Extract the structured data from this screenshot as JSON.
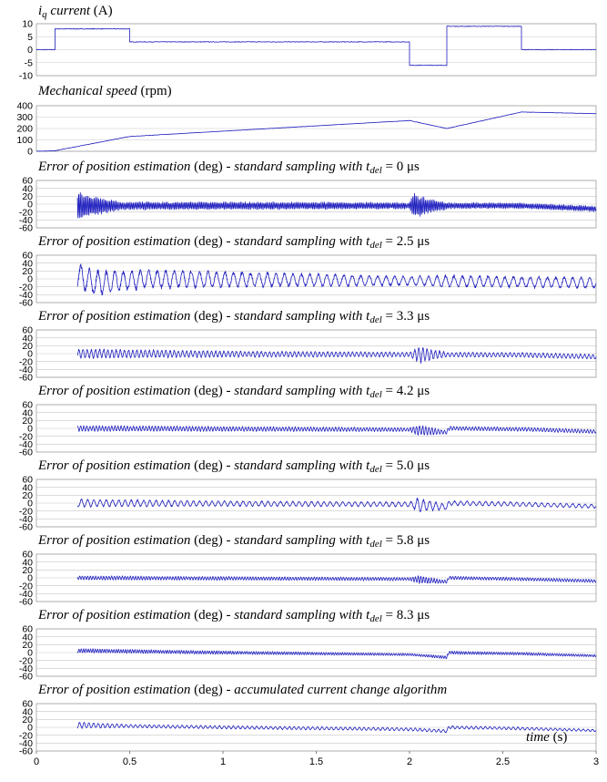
{
  "chart_data": [
    {
      "type": "line",
      "title_parts": [
        [
          "i",
          "i"
        ],
        [
          "q",
          "sub-i"
        ],
        [
          " current",
          "i"
        ],
        [
          " (A)",
          "n"
        ]
      ],
      "ylim": [
        -10,
        10
      ],
      "yticks": [
        "10",
        "5",
        "0",
        "-5",
        "-10"
      ],
      "yticks_v": [
        10,
        5,
        0,
        -5,
        -10
      ],
      "xlim": [
        0,
        3
      ],
      "series": [
        {
          "kind": "segments",
          "points": [
            [
              0,
              0
            ],
            [
              0.1,
              0
            ],
            [
              0.1,
              8
            ],
            [
              0.5,
              8
            ],
            [
              0.5,
              3
            ],
            [
              2.0,
              3
            ],
            [
              2.0,
              -6
            ],
            [
              2.2,
              -6
            ],
            [
              2.2,
              9
            ],
            [
              2.6,
              9
            ],
            [
              2.6,
              0
            ],
            [
              3.0,
              0
            ]
          ],
          "noise": 0.25
        }
      ]
    },
    {
      "type": "line",
      "title_parts": [
        [
          "Mechanical speed",
          "i"
        ],
        [
          " (rpm)",
          "n"
        ]
      ],
      "ylim": [
        0,
        400
      ],
      "yticks": [
        "400",
        "300",
        "200",
        "100",
        "0"
      ],
      "yticks_v": [
        400,
        300,
        200,
        100,
        0
      ],
      "xlim": [
        0,
        3
      ],
      "series": [
        {
          "kind": "segments",
          "points": [
            [
              0,
              0
            ],
            [
              0.1,
              5
            ],
            [
              0.5,
              130
            ],
            [
              2.0,
              270
            ],
            [
              2.2,
              200
            ],
            [
              2.6,
              345
            ],
            [
              3.0,
              330
            ]
          ],
          "noise": 3
        }
      ]
    },
    {
      "type": "line",
      "title_parts": [
        [
          "Error of position estimation",
          "i"
        ],
        [
          " (deg) - ",
          "n"
        ],
        [
          "standard sampling with ",
          "i"
        ],
        [
          "t",
          "i"
        ],
        [
          "del",
          "sub-i"
        ],
        [
          " = 0 ",
          "n"
        ],
        [
          "μs",
          "n"
        ]
      ],
      "ylim": [
        -60,
        60
      ],
      "yticks": [
        "60",
        "40",
        "20",
        "0",
        "-20",
        "-40",
        "-60"
      ],
      "yticks_v": [
        60,
        40,
        20,
        0,
        -20,
        -40,
        -60
      ],
      "xlim": [
        0,
        3
      ],
      "series": [
        {
          "kind": "osc",
          "start": 0.22,
          "offset": -2,
          "amp": [
            [
              0.22,
              35
            ],
            [
              0.45,
              10
            ],
            [
              2.0,
              8
            ],
            [
              2.02,
              30
            ],
            [
              2.2,
              8
            ],
            [
              2.6,
              7
            ],
            [
              3.0,
              7
            ]
          ],
          "freq": 120,
          "drift": [
            [
              2.6,
              -2
            ],
            [
              3.0,
              -10
            ]
          ]
        }
      ]
    },
    {
      "type": "line",
      "title_parts": [
        [
          "Error of position estimation",
          "i"
        ],
        [
          " (deg) - ",
          "n"
        ],
        [
          "standard sampling with ",
          "i"
        ],
        [
          "t",
          "i"
        ],
        [
          "del",
          "sub-i"
        ],
        [
          " = 2.5 ",
          "n"
        ],
        [
          "μs",
          "n"
        ]
      ],
      "ylim": [
        -60,
        60
      ],
      "yticks": [
        "60",
        "40",
        "20",
        "0",
        "-20",
        "-40",
        "-60"
      ],
      "yticks_v": [
        60,
        40,
        20,
        0,
        -20,
        -40,
        -60
      ],
      "xlim": [
        0,
        3
      ],
      "series": [
        {
          "kind": "osc",
          "start": 0.22,
          "offset": 0,
          "amp": [
            [
              0.22,
              35
            ],
            [
              0.5,
              25
            ],
            [
              2.0,
              12
            ],
            [
              2.2,
              15
            ],
            [
              2.6,
              14
            ],
            [
              3.0,
              14
            ]
          ],
          "freq": 22,
          "drift": [
            [
              0.22,
              10
            ],
            [
              0.3,
              -10
            ],
            [
              0.6,
              0
            ],
            [
              2.0,
              -5
            ],
            [
              2.6,
              -8
            ],
            [
              3.0,
              -10
            ]
          ]
        }
      ]
    },
    {
      "type": "line",
      "title_parts": [
        [
          "Error of position estimation",
          "i"
        ],
        [
          " (deg) - ",
          "n"
        ],
        [
          "standard sampling with ",
          "i"
        ],
        [
          "t",
          "i"
        ],
        [
          "del",
          "sub-i"
        ],
        [
          " = 3.3 ",
          "n"
        ],
        [
          "μs",
          "n"
        ]
      ],
      "ylim": [
        -60,
        60
      ],
      "yticks": [
        "60",
        "40",
        "20",
        "0",
        "-20",
        "-40",
        "-60"
      ],
      "yticks_v": [
        60,
        40,
        20,
        0,
        -20,
        -40,
        -60
      ],
      "xlim": [
        0,
        3
      ],
      "series": [
        {
          "kind": "osc",
          "start": 0.22,
          "offset": 0,
          "amp": [
            [
              0.22,
              12
            ],
            [
              1.0,
              8
            ],
            [
              2.0,
              6
            ],
            [
              2.05,
              20
            ],
            [
              2.2,
              6
            ],
            [
              2.6,
              6
            ],
            [
              3.0,
              6
            ]
          ],
          "freq": 45,
          "drift": [
            [
              0.22,
              0
            ],
            [
              2.6,
              -3
            ],
            [
              3.0,
              -8
            ]
          ]
        }
      ]
    },
    {
      "type": "line",
      "title_parts": [
        [
          "Error of position estimation",
          "i"
        ],
        [
          " (deg) - ",
          "n"
        ],
        [
          "standard sampling with ",
          "i"
        ],
        [
          "t",
          "i"
        ],
        [
          "del",
          "sub-i"
        ],
        [
          " = 4.2 ",
          "n"
        ],
        [
          "μs",
          "n"
        ]
      ],
      "ylim": [
        -60,
        60
      ],
      "yticks": [
        "60",
        "40",
        "20",
        "0",
        "-20",
        "-40",
        "-60"
      ],
      "yticks_v": [
        60,
        40,
        20,
        0,
        -20,
        -40,
        -60
      ],
      "xlim": [
        0,
        3
      ],
      "series": [
        {
          "kind": "osc",
          "start": 0.22,
          "offset": 0,
          "amp": [
            [
              0.22,
              7
            ],
            [
              2.0,
              5
            ],
            [
              2.05,
              14
            ],
            [
              2.2,
              5
            ],
            [
              3.0,
              5
            ]
          ],
          "freq": 60,
          "drift": [
            [
              0.22,
              0
            ],
            [
              2.0,
              -3
            ],
            [
              2.2,
              -10
            ],
            [
              2.21,
              0
            ],
            [
              2.6,
              -2
            ],
            [
              3.0,
              -8
            ]
          ]
        }
      ]
    },
    {
      "type": "line",
      "title_parts": [
        [
          "Error of position estimation",
          "i"
        ],
        [
          " (deg) - ",
          "n"
        ],
        [
          "standard sampling with ",
          "i"
        ],
        [
          "t",
          "i"
        ],
        [
          "del",
          "sub-i"
        ],
        [
          " = 5.0 ",
          "n"
        ],
        [
          "μs",
          "n"
        ]
      ],
      "ylim": [
        -60,
        60
      ],
      "yticks": [
        "60",
        "40",
        "20",
        "0",
        "-20",
        "-40",
        "-60"
      ],
      "yticks_v": [
        60,
        40,
        20,
        0,
        -20,
        -40,
        -60
      ],
      "xlim": [
        0,
        3
      ],
      "series": [
        {
          "kind": "osc",
          "start": 0.22,
          "offset": 0,
          "amp": [
            [
              0.22,
              10
            ],
            [
              1.0,
              7
            ],
            [
              2.0,
              6
            ],
            [
              2.05,
              18
            ],
            [
              2.2,
              6
            ],
            [
              3.0,
              5
            ]
          ],
          "freq": 30,
          "drift": [
            [
              0.22,
              0
            ],
            [
              2.0,
              -3
            ],
            [
              2.2,
              -10
            ],
            [
              2.21,
              0
            ],
            [
              2.6,
              -3
            ],
            [
              3.0,
              -8
            ]
          ]
        }
      ]
    },
    {
      "type": "line",
      "title_parts": [
        [
          "Error of position estimation",
          "i"
        ],
        [
          " (deg) - ",
          "n"
        ],
        [
          "standard sampling with ",
          "i"
        ],
        [
          "t",
          "i"
        ],
        [
          "del",
          "sub-i"
        ],
        [
          " = 5.8 ",
          "n"
        ],
        [
          "μs",
          "n"
        ]
      ],
      "ylim": [
        -60,
        60
      ],
      "yticks": [
        "60",
        "40",
        "20",
        "0",
        "-20",
        "-40",
        "-60"
      ],
      "yticks_v": [
        60,
        40,
        20,
        0,
        -20,
        -40,
        -60
      ],
      "xlim": [
        0,
        3
      ],
      "series": [
        {
          "kind": "osc",
          "start": 0.22,
          "offset": 0,
          "amp": [
            [
              0.22,
              5
            ],
            [
              2.0,
              4
            ],
            [
              2.05,
              10
            ],
            [
              2.2,
              4
            ],
            [
              3.0,
              4
            ]
          ],
          "freq": 70,
          "drift": [
            [
              0.22,
              0
            ],
            [
              2.0,
              -3
            ],
            [
              2.2,
              -10
            ],
            [
              2.21,
              0
            ],
            [
              2.6,
              -3
            ],
            [
              3.0,
              -8
            ]
          ]
        }
      ]
    },
    {
      "type": "line",
      "title_parts": [
        [
          "Error of position estimation",
          "i"
        ],
        [
          " (deg) - ",
          "n"
        ],
        [
          "standard sampling with ",
          "i"
        ],
        [
          "t",
          "i"
        ],
        [
          "del",
          "sub-i"
        ],
        [
          " = 8.3 ",
          "n"
        ],
        [
          "μs",
          "n"
        ]
      ],
      "ylim": [
        -60,
        60
      ],
      "yticks": [
        "60",
        "40",
        "20",
        "0",
        "-20",
        "-40",
        "-60"
      ],
      "yticks_v": [
        60,
        40,
        20,
        0,
        -20,
        -40,
        -60
      ],
      "xlim": [
        0,
        3
      ],
      "series": [
        {
          "kind": "osc",
          "start": 0.22,
          "offset": 0,
          "amp": [
            [
              0.22,
              5
            ],
            [
              2.0,
              3
            ],
            [
              2.2,
              4
            ],
            [
              3.0,
              3
            ]
          ],
          "freq": 80,
          "drift": [
            [
              0.22,
              5
            ],
            [
              1.0,
              0
            ],
            [
              2.0,
              -5
            ],
            [
              2.2,
              -12
            ],
            [
              2.21,
              0
            ],
            [
              2.6,
              -3
            ],
            [
              3.0,
              -8
            ]
          ]
        }
      ]
    },
    {
      "type": "line",
      "title_parts": [
        [
          "Error of position estimation",
          "i"
        ],
        [
          " (deg) - ",
          "n"
        ],
        [
          "accumulated current change algorithm",
          "i"
        ]
      ],
      "ylim": [
        -60,
        60
      ],
      "yticks": [
        "60",
        "40",
        "20",
        "0",
        "-20",
        "-40",
        "-60"
      ],
      "yticks_v": [
        60,
        40,
        20,
        0,
        -20,
        -40,
        -60
      ],
      "xlim": [
        0,
        3
      ],
      "series": [
        {
          "kind": "osc",
          "start": 0.22,
          "offset": 0,
          "amp": [
            [
              0.22,
              8
            ],
            [
              0.5,
              4
            ],
            [
              2.0,
              4
            ],
            [
              2.2,
              4
            ],
            [
              3.0,
              3
            ]
          ],
          "freq": 40,
          "drift": [
            [
              0.22,
              5
            ],
            [
              1.0,
              0
            ],
            [
              2.0,
              -5
            ],
            [
              2.2,
              -10
            ],
            [
              2.21,
              0
            ],
            [
              2.6,
              -3
            ],
            [
              3.0,
              -8
            ]
          ]
        }
      ]
    }
  ],
  "xaxis": {
    "ticks": [
      "0",
      "0.5",
      "1",
      "1.5",
      "2",
      "2.5",
      "3"
    ],
    "ticks_v": [
      0,
      0.5,
      1,
      1.5,
      2,
      2.5,
      3
    ],
    "label_parts": [
      [
        "time",
        "i"
      ],
      [
        " (s)",
        "n"
      ]
    ]
  },
  "colors": {
    "trace": "#1f1fbf",
    "grid": "#c8c8c8"
  }
}
